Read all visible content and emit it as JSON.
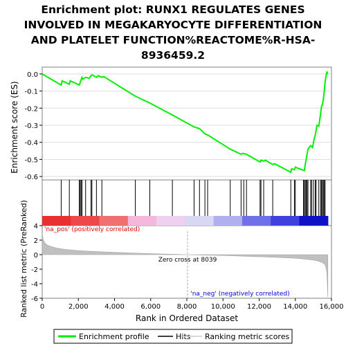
{
  "chart_data": {
    "type": "line",
    "title_lines": [
      "Enrichment plot: RUNX1 REGULATES GENES",
      "INVOLVED IN MEGAKARYOCYTE DIFFERENTIATION",
      "AND PLATELET FUNCTION%REACTOME%R-HSA-",
      "8936459.2"
    ],
    "top_panel": {
      "ylabel": "Enrichment score (ES)",
      "ylim": [
        -0.62,
        0.04
      ],
      "yticks": [
        "0.0",
        "-0.1",
        "-0.2",
        "-0.3",
        "-0.4",
        "-0.5",
        "-0.6"
      ],
      "ytick_values": [
        0.0,
        -0.1,
        -0.2,
        -0.3,
        -0.4,
        -0.5,
        -0.6
      ],
      "series": [
        {
          "name": "Enrichment profile",
          "color": "#00ee00",
          "x": [
            0,
            1050,
            1100,
            1500,
            1550,
            2050,
            2100,
            2150,
            2200,
            2250,
            2400,
            2600,
            2700,
            2750,
            3000,
            3100,
            3300,
            3400,
            5150,
            5950,
            7200,
            8400,
            8700,
            9000,
            9200,
            10400,
            11000,
            11100,
            11300,
            12050,
            12100,
            12250,
            12350,
            12750,
            12850,
            13750,
            13800,
            13950,
            14000,
            14100,
            14500,
            14550,
            14600,
            14650,
            14700,
            14800,
            14850,
            14950,
            15000,
            15050,
            15100,
            15150,
            15200,
            15300,
            15350,
            15400,
            15450,
            15500,
            15550,
            15600,
            15650,
            15700,
            15750,
            15800
          ],
          "y": [
            0.0,
            -0.065,
            -0.04,
            -0.06,
            -0.04,
            -0.065,
            -0.05,
            -0.035,
            -0.02,
            -0.03,
            -0.02,
            -0.025,
            -0.01,
            -0.005,
            -0.02,
            -0.01,
            -0.02,
            -0.015,
            -0.13,
            -0.17,
            -0.24,
            -0.31,
            -0.32,
            -0.35,
            -0.36,
            -0.44,
            -0.47,
            -0.465,
            -0.47,
            -0.515,
            -0.505,
            -0.51,
            -0.505,
            -0.53,
            -0.525,
            -0.575,
            -0.555,
            -0.56,
            -0.545,
            -0.55,
            -0.565,
            -0.53,
            -0.5,
            -0.47,
            -0.44,
            -0.425,
            -0.42,
            -0.43,
            -0.405,
            -0.375,
            -0.36,
            -0.33,
            -0.3,
            -0.305,
            -0.27,
            -0.23,
            -0.19,
            -0.18,
            -0.15,
            -0.1,
            -0.045,
            -0.01,
            0.01,
            0.0
          ]
        }
      ]
    },
    "hits_panel": {
      "name": "Hits",
      "positions": [
        1050,
        1500,
        2050,
        2100,
        2150,
        2200,
        2400,
        2700,
        2750,
        3000,
        3300,
        5150,
        5950,
        7200,
        8400,
        8700,
        9000,
        9150,
        10400,
        11000,
        11150,
        11300,
        12050,
        12100,
        12250,
        12750,
        13750,
        13950,
        14000,
        14450,
        14500,
        14550,
        14600,
        14650,
        14700,
        14850,
        14900,
        15000,
        15100,
        15150,
        15300,
        15400,
        15450,
        15500,
        15550,
        15600,
        15650
      ]
    },
    "ranked_panel": {
      "name": "Ranking metric scores",
      "ylabel": "Ranked list metric (PreRanked)",
      "ylim": [
        -6,
        4
      ],
      "yticks": [
        "4",
        "2",
        "0",
        "-2",
        "-4",
        "-6"
      ],
      "ytick_values": [
        4,
        2,
        0,
        -2,
        -4,
        -6
      ],
      "profile_x": [
        0,
        50,
        150,
        300,
        500,
        800,
        1200,
        2000,
        3000,
        4000,
        5000,
        6000,
        7000,
        8039,
        9000,
        10000,
        11000,
        12000,
        13000,
        14000,
        14500,
        15000,
        15300,
        15500,
        15650,
        15700,
        15750,
        15780,
        15800
      ],
      "profile_y": [
        3.0,
        2.1,
        1.6,
        1.3,
        1.1,
        0.9,
        0.75,
        0.55,
        0.42,
        0.32,
        0.22,
        0.14,
        0.07,
        0.0,
        -0.06,
        -0.12,
        -0.2,
        -0.28,
        -0.38,
        -0.5,
        -0.6,
        -0.75,
        -0.9,
        -1.1,
        -1.4,
        -1.8,
        -2.6,
        -4.5,
        -5.8
      ],
      "zero_cross_label": "Zero cross at 8039",
      "zero_cross": 8039,
      "pos_label": "'na_pos' (positively correlated)",
      "neg_label": "'na_neg' (negatively correlated)",
      "pos_color": "#dd0000",
      "neg_color": "#0000dd"
    },
    "xaxis": {
      "xlabel": "Rank in Ordered Dataset",
      "xlim": [
        0,
        16000
      ],
      "xticks": [
        "0",
        "2,000",
        "4,000",
        "6,000",
        "8,000",
        "10,000",
        "12,000",
        "14,000",
        "16,000"
      ],
      "xtick_values": [
        0,
        2000,
        4000,
        6000,
        8000,
        10000,
        12000,
        14000,
        16000
      ],
      "max_rank": 15800
    },
    "legend": {
      "placement": "bottom",
      "entries": [
        "Enrichment profile",
        "Hits",
        "Ranking metric scores"
      ],
      "colors": [
        "#00ee00",
        "#000000",
        "#cccccc"
      ]
    },
    "colorbar": [
      "#e83030",
      "#ee4848",
      "#f07070",
      "#f5b8dc",
      "#f0d0f0",
      "#d8d8f5",
      "#b0b0f0",
      "#7070e8",
      "#4040e0",
      "#1010c8"
    ]
  }
}
